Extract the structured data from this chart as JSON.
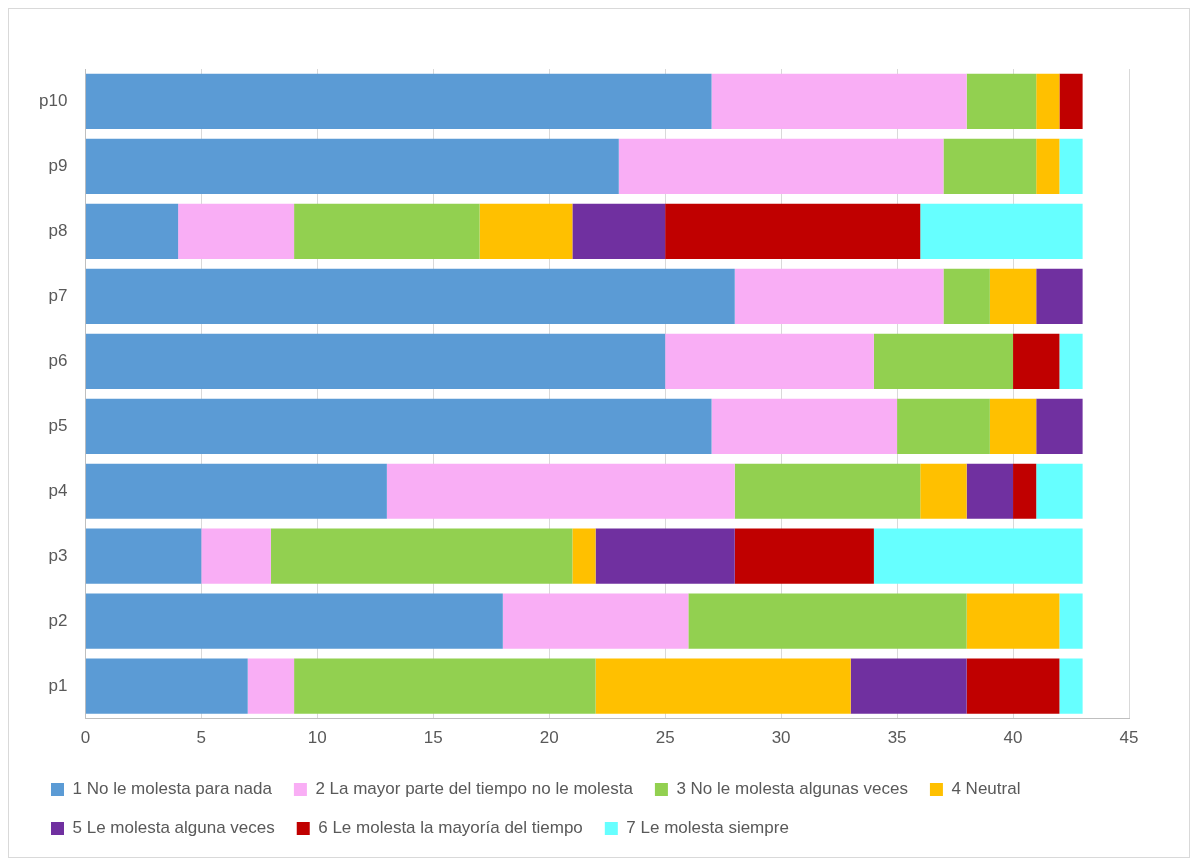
{
  "chart_data": {
    "type": "bar",
    "orientation": "horizontal",
    "stacked": true,
    "categories": [
      "p10",
      "p9",
      "p8",
      "p7",
      "p6",
      "p5",
      "p4",
      "p3",
      "p2",
      "p1"
    ],
    "series": [
      {
        "name": "1 No le molesta para nada",
        "color": "#5b9bd5",
        "values": [
          27,
          23,
          4,
          28,
          25,
          27,
          13,
          5,
          18,
          7
        ]
      },
      {
        "name": "2 La mayor parte del tiempo no le molesta",
        "color": "#f9aef5",
        "values": [
          11,
          14,
          5,
          9,
          9,
          8,
          15,
          3,
          8,
          2
        ]
      },
      {
        "name": "3 No le molesta algunas veces",
        "color": "#92d050",
        "values": [
          3,
          4,
          8,
          2,
          6,
          4,
          8,
          13,
          12,
          13
        ]
      },
      {
        "name": "4 Neutral",
        "color": "#ffc000",
        "values": [
          1,
          1,
          4,
          2,
          0,
          2,
          2,
          1,
          4,
          11
        ]
      },
      {
        "name": "5 Le molesta alguna veces",
        "color": "#7030a0",
        "values": [
          0,
          0,
          4,
          2,
          0,
          2,
          2,
          6,
          0,
          5
        ]
      },
      {
        "name": "6 Le molesta la mayoría del tiempo",
        "color": "#c00000",
        "values": [
          1,
          0,
          11,
          0,
          2,
          0,
          1,
          6,
          0,
          4
        ]
      },
      {
        "name": "7 Le molesta siempre",
        "color": "#66ffff",
        "values": [
          0,
          1,
          7,
          0,
          1,
          0,
          2,
          9,
          1,
          1
        ]
      }
    ],
    "xlim": [
      0,
      45
    ],
    "xticks": [
      0,
      5,
      10,
      15,
      20,
      25,
      30,
      35,
      40,
      45
    ],
    "grid": "x",
    "legend": "bottom"
  }
}
